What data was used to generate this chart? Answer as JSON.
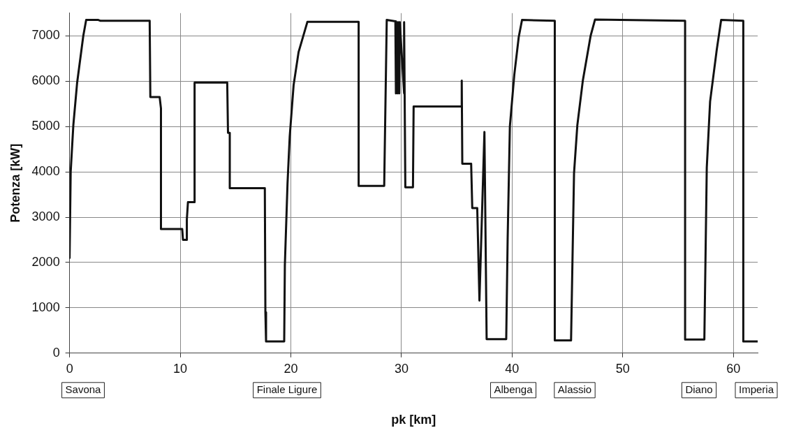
{
  "chart_data": {
    "type": "line",
    "xlabel": "pk [km]",
    "ylabel": "Potenza [kW]",
    "xlim": [
      0,
      62.2
    ],
    "xticks": [
      0,
      10,
      20,
      30,
      40,
      50,
      60
    ],
    "ylim": [
      0,
      7500
    ],
    "yticks": [
      0,
      1000,
      2000,
      3000,
      4000,
      5000,
      6000,
      7000
    ],
    "grid": true,
    "legend": false,
    "marker": "none",
    "line_style": "solid",
    "annotations": [
      "Savona",
      "Finale Ligure",
      "Albenga",
      "Alassio",
      "Diano",
      "Imperia"
    ],
    "series": [
      {
        "color": "#111111",
        "x": [
          0,
          0.1,
          0.34,
          0.68,
          1.24,
          1.5,
          2.6,
          2.8,
          7.24,
          7.3,
          8.14,
          8.26,
          8.26,
          10.18,
          10.25,
          10.6,
          10.6,
          10.7,
          11.3,
          11.3,
          14.25,
          14.32,
          14.48,
          14.48,
          17.65,
          17.7,
          17.76,
          19.4,
          19.46,
          19.7,
          19.9,
          20.25,
          20.7,
          21.5,
          26.13,
          26.13,
          28.44,
          28.67,
          29.45,
          29.5,
          29.55,
          29.65,
          29.7,
          29.8,
          29.85,
          30.24,
          30.24,
          30.35,
          31.04,
          31.1,
          35.45,
          35.45,
          35.5,
          36.3,
          36.4,
          36.85,
          37.05,
          37.5,
          37.7,
          39.47,
          39.6,
          39.8,
          40.2,
          40.6,
          40.9,
          43.86,
          43.86,
          45.33,
          45.6,
          45.9,
          46.4,
          47.1,
          47.5,
          55.64,
          55.64,
          57.38,
          57.6,
          57.9,
          58.5,
          58.9,
          60.9,
          60.9,
          62.2
        ],
        "values": [
          2100,
          4000,
          5030,
          5960,
          7000,
          7350,
          7350,
          7330,
          7330,
          5650,
          5650,
          5400,
          2740,
          2740,
          2500,
          2500,
          2950,
          3330,
          3330,
          5970,
          5970,
          4860,
          4860,
          3640,
          3640,
          900,
          260,
          260,
          1940,
          3740,
          4780,
          5910,
          6640,
          7310,
          7310,
          3690,
          3690,
          7350,
          7320,
          5730,
          7300,
          5730,
          7300,
          5730,
          7300,
          5730,
          7300,
          3660,
          3660,
          5440,
          5440,
          6010,
          4180,
          4180,
          3200,
          3200,
          1160,
          4880,
          310,
          310,
          2530,
          5000,
          6140,
          6970,
          7350,
          7330,
          280,
          280,
          3970,
          5030,
          6020,
          7000,
          7360,
          7330,
          300,
          300,
          4100,
          5550,
          6690,
          7350,
          7330,
          260,
          260
        ]
      }
    ]
  }
}
